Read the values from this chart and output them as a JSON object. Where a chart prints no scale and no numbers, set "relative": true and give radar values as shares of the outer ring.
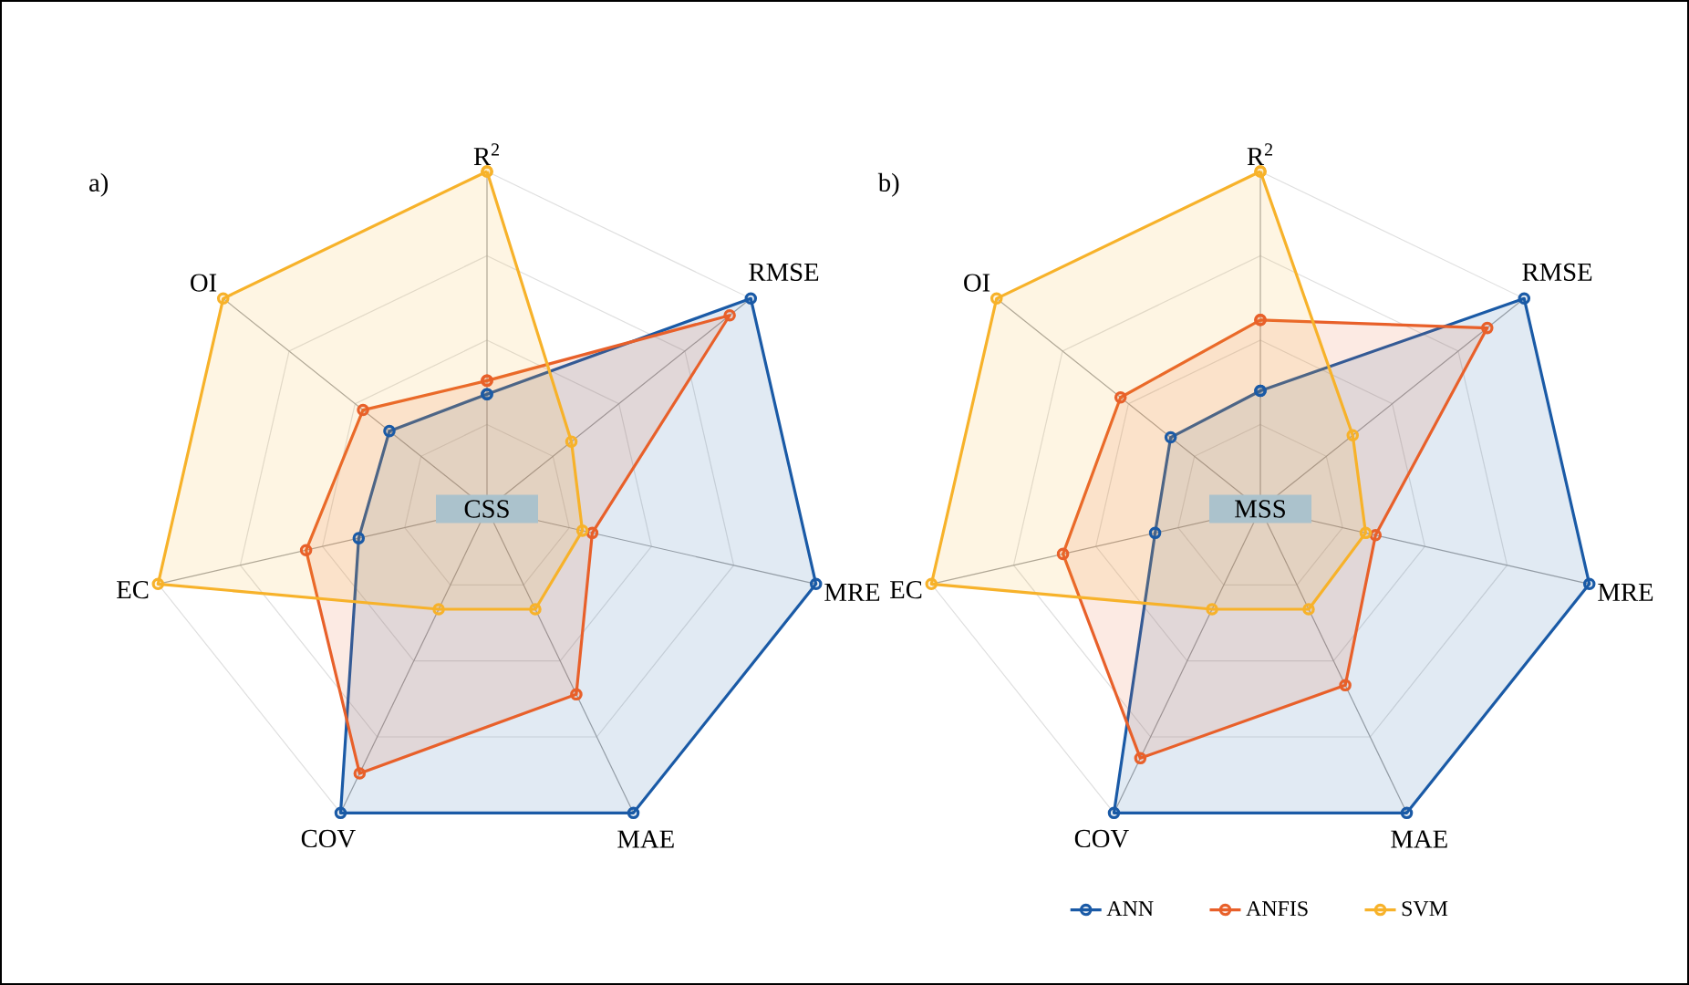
{
  "chart_data": [
    {
      "type": "radar",
      "title": "a)",
      "relative": true,
      "grid": true,
      "marker": "circle",
      "annotations": [
        "CSS"
      ],
      "categories": [
        "R$^{2}$",
        "RMSE",
        "MRE",
        "MAE",
        "COV",
        "EC",
        "OI"
      ],
      "series": [
        {
          "color": "#1a5aa6",
          "values": [
            0.34,
            1,
            1,
            1,
            1,
            0.39,
            0.37
          ]
        },
        {
          "color": "#e8602a",
          "values": [
            0.38,
            0.92,
            0.32,
            0.61,
            0.87,
            0.55,
            0.47
          ]
        },
        {
          "color": "#f7b22a",
          "values": [
            1,
            0.32,
            0.29,
            0.33,
            0.33,
            1,
            1
          ]
        }
      ]
    },
    {
      "type": "radar",
      "title": "b)",
      "relative": true,
      "grid": true,
      "marker": "circle",
      "legend": "bottom",
      "annotations": [
        "MSS"
      ],
      "categories": [
        "R$^{2}$",
        "RMSE",
        "MRE",
        "MAE",
        "COV",
        "EC",
        "OI"
      ],
      "series": [
        {
          "name": "ANN",
          "color": "#1a5aa6",
          "values": [
            0.35,
            1,
            1,
            1,
            1,
            0.32,
            0.34
          ]
        },
        {
          "name": "ANFIS",
          "color": "#e8602a",
          "values": [
            0.56,
            0.86,
            0.35,
            0.58,
            0.82,
            0.6,
            0.53
          ]
        },
        {
          "name": "SVM",
          "color": "#f7b22a",
          "values": [
            1,
            0.35,
            0.32,
            0.33,
            0.33,
            1,
            1
          ]
        }
      ]
    }
  ]
}
